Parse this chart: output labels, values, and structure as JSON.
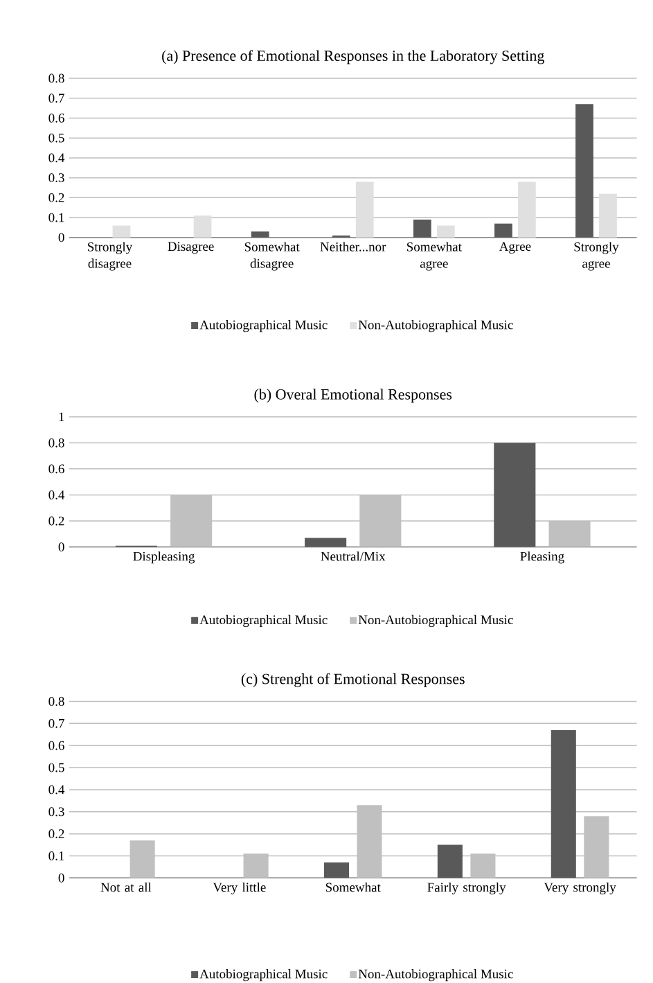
{
  "chart_data": [
    {
      "type": "bar",
      "title": "(a) Presence of Emotional Responses in the Laboratory Setting",
      "categories": [
        "Strongly disagree",
        "Disagree",
        "Somewhat disagree",
        "Neither...nor",
        "Somewhat agree",
        "Agree",
        "Strongly agree"
      ],
      "series": [
        {
          "name": "Autobiographical Music",
          "color": "#595959",
          "values": [
            0,
            0,
            0.03,
            0.01,
            0.09,
            0.07,
            0.67
          ]
        },
        {
          "name": "Non-Autobiographical Music",
          "color": "#e0e0e0",
          "values": [
            0.06,
            0.11,
            0,
            0.28,
            0.06,
            0.28,
            0.22
          ]
        }
      ],
      "ylim": [
        0,
        0.8
      ],
      "yticks": [
        0,
        0.1,
        0.2,
        0.3,
        0.4,
        0.5,
        0.6,
        0.7,
        0.8
      ],
      "grid": "y",
      "legend": "bottom"
    },
    {
      "type": "bar",
      "title": "(b) Overal Emotional Responses",
      "categories": [
        "Displeasing",
        "Neutral/Mix",
        "Pleasing"
      ],
      "series": [
        {
          "name": "Autobiographical Music",
          "color": "#595959",
          "values": [
            0.01,
            0.07,
            0.8
          ]
        },
        {
          "name": "Non-Autobiographical Music",
          "color": "#c0c0c0",
          "values": [
            0.4,
            0.4,
            0.2
          ]
        }
      ],
      "ylim": [
        0,
        1
      ],
      "yticks": [
        0,
        0.2,
        0.4,
        0.6,
        0.8,
        1
      ],
      "grid": "y",
      "legend": "bottom"
    },
    {
      "type": "bar",
      "title": "(c) Strenght of Emotional Responses",
      "categories": [
        "Not at all",
        "Very little",
        "Somewhat",
        "Fairly strongly",
        "Very strongly"
      ],
      "series": [
        {
          "name": "Autobiographical Music",
          "color": "#595959",
          "values": [
            0,
            0,
            0.07,
            0.15,
            0.67
          ]
        },
        {
          "name": "Non-Autobiographical Music",
          "color": "#c0c0c0",
          "values": [
            0.17,
            0.11,
            0.33,
            0.11,
            0.28
          ]
        }
      ],
      "ylim": [
        0,
        0.8
      ],
      "yticks": [
        0,
        0.1,
        0.2,
        0.3,
        0.4,
        0.5,
        0.6,
        0.7,
        0.8
      ],
      "grid": "y",
      "legend": "bottom"
    }
  ]
}
